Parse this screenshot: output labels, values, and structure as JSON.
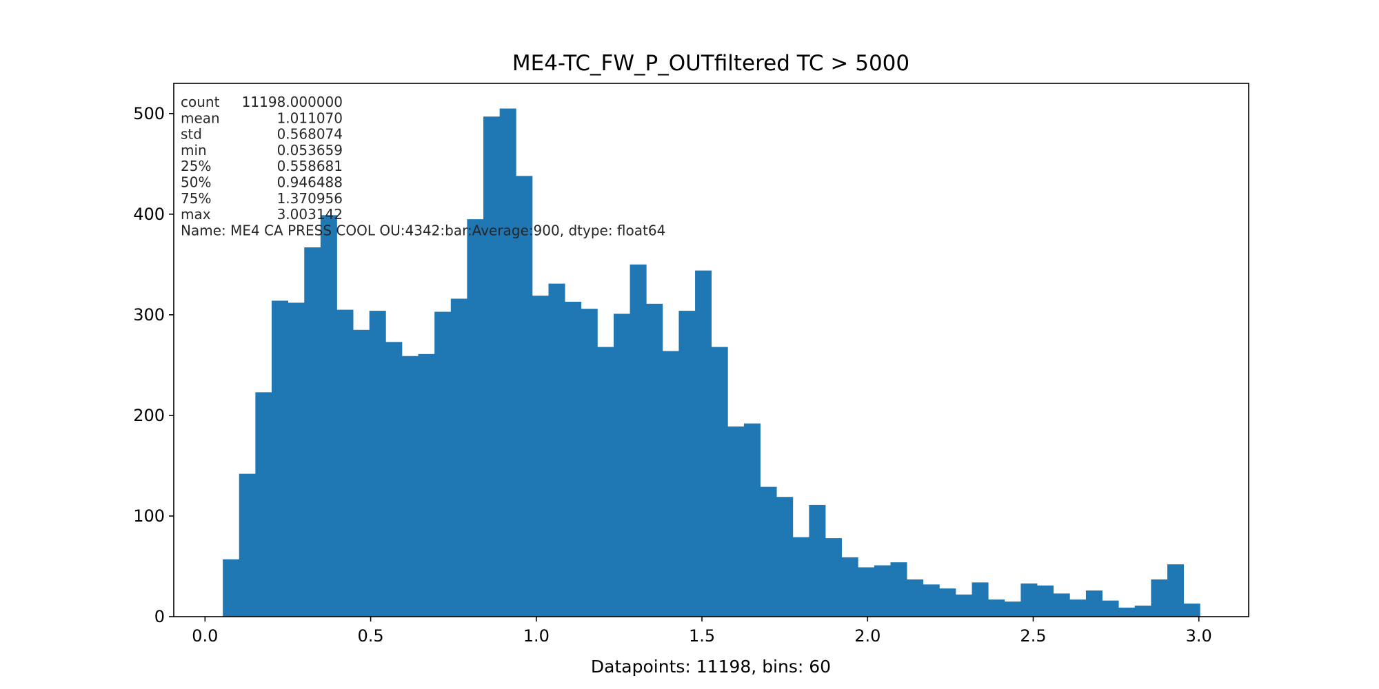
{
  "chart_data": {
    "type": "bar",
    "title": "ME4-TC_FW_P_OUTfiltered TC > 5000",
    "xlabel": "Datapoints: 11198, bins: 60",
    "ylabel": "",
    "bar_color": "#1f77b4",
    "xlim": [
      -0.0944,
      3.1504
    ],
    "ylim": [
      0,
      530
    ],
    "grid": false,
    "x_ticks": [
      0.0,
      0.5,
      1.0,
      1.5,
      2.0,
      2.5,
      3.0
    ],
    "x_tick_labels": [
      "0.0",
      "0.5",
      "1.0",
      "1.5",
      "2.0",
      "2.5",
      "3.0"
    ],
    "y_ticks": [
      0,
      100,
      200,
      300,
      400,
      500
    ],
    "y_tick_labels": [
      "0",
      "100",
      "200",
      "300",
      "400",
      "500"
    ],
    "bin_start": 0.053659,
    "bin_end": 3.003142,
    "bins": 60,
    "counts": [
      57,
      142,
      223,
      314,
      312,
      367,
      399,
      305,
      285,
      304,
      273,
      259,
      261,
      303,
      316,
      395,
      497,
      505,
      438,
      319,
      331,
      313,
      306,
      268,
      301,
      350,
      311,
      264,
      304,
      344,
      268,
      189,
      192,
      129,
      119,
      79,
      111,
      78,
      59,
      49,
      51,
      54,
      37,
      32,
      28,
      22,
      34,
      17,
      15,
      33,
      31,
      23,
      17,
      26,
      16,
      9,
      11,
      37,
      52,
      13
    ],
    "annotation_lines": [
      {
        "key": "count",
        "value": "11198.000000"
      },
      {
        "key": "mean",
        "value": "1.011070"
      },
      {
        "key": "std",
        "value": "0.568074"
      },
      {
        "key": "min",
        "value": "0.053659"
      },
      {
        "key": "25%",
        "value": "0.558681"
      },
      {
        "key": "50%",
        "value": "0.946488"
      },
      {
        "key": "75%",
        "value": "1.370956"
      },
      {
        "key": "max",
        "value": "3.003142"
      }
    ],
    "annotation_footer": "Name: ME4 CA PRESS COOL OU:4342:bar:Average:900, dtype: float64"
  }
}
